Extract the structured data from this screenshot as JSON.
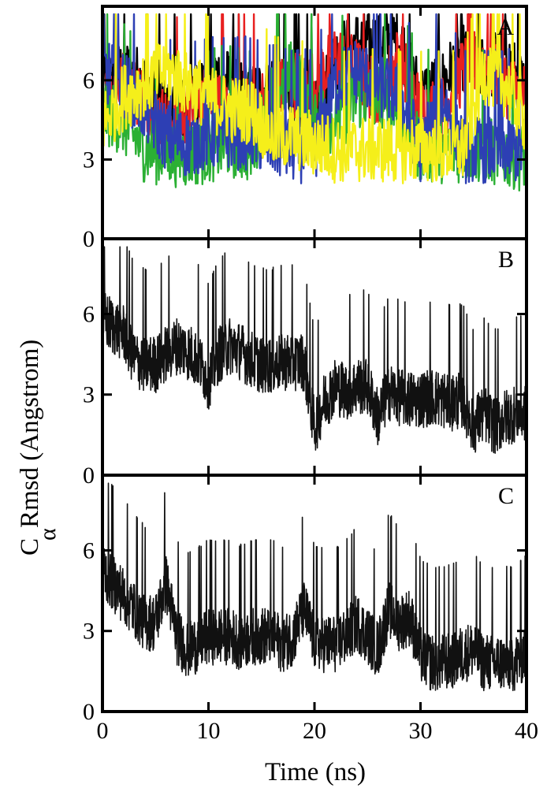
{
  "chart_data": {
    "type": "line",
    "ylabel": "C",
    "ylabel_subscript": "α",
    "ylabel_rest": "Rmsd (Angstrom)",
    "xlabel": "Time (ns)",
    "shared_x": true,
    "xlim": [
      0,
      40
    ],
    "xticks": [
      "0",
      "10",
      "20",
      "30",
      "40"
    ],
    "grid": false,
    "panels": [
      {
        "label": "A",
        "ylim": [
          0,
          8.8
        ],
        "yticks": [
          "0",
          "3",
          "6"
        ],
        "series_colors": [
          "#000000",
          "#e82020",
          "#2bb034",
          "#2d3fb4",
          "#f5ef1a"
        ],
        "series": [
          {
            "color": "#000000",
            "x": [
              0,
              2,
              4,
              6,
              8,
              10,
              12,
              14,
              16,
              18,
              20,
              22,
              24,
              26,
              28,
              30,
              32,
              34,
              36,
              38,
              40
            ],
            "y": [
              5.5,
              6.0,
              5.5,
              4.5,
              4.5,
              6.0,
              5.5,
              5.0,
              5.5,
              5.0,
              4.5,
              6.5,
              7.0,
              7.0,
              7.2,
              5.0,
              5.5,
              6.5,
              6.0,
              6.5,
              5.0
            ]
          },
          {
            "color": "#e82020",
            "x": [
              0,
              2,
              4,
              6,
              8,
              10,
              12,
              14,
              16,
              18,
              20,
              22,
              24,
              26,
              28,
              30,
              32,
              34,
              36,
              38,
              40
            ],
            "y": [
              5.0,
              5.5,
              5.0,
              4.0,
              4.5,
              5.0,
              4.5,
              4.5,
              5.0,
              5.5,
              5.5,
              6.5,
              6.0,
              5.0,
              6.5,
              4.5,
              4.5,
              6.0,
              6.5,
              5.5,
              5.0
            ]
          },
          {
            "color": "#2bb034",
            "x": [
              0,
              2,
              4,
              6,
              8,
              10,
              12,
              14,
              16,
              18,
              20,
              22,
              24,
              26,
              28,
              30,
              32,
              34,
              36,
              38,
              40
            ],
            "y": [
              4.5,
              4.0,
              3.0,
              2.9,
              2.8,
              3.0,
              3.2,
              3.0,
              5.0,
              6.0,
              4.5,
              4.0,
              5.0,
              5.0,
              4.5,
              3.0,
              3.0,
              3.0,
              3.0,
              2.8,
              2.7
            ]
          },
          {
            "color": "#2d3fb4",
            "x": [
              0,
              2,
              4,
              6,
              8,
              10,
              12,
              14,
              16,
              18,
              20,
              22,
              24,
              26,
              28,
              30,
              32,
              34,
              36,
              38,
              40
            ],
            "y": [
              6.0,
              5.5,
              4.5,
              3.5,
              3.2,
              3.5,
              3.5,
              3.5,
              3.2,
              3.0,
              3.0,
              5.5,
              6.0,
              5.5,
              5.0,
              3.0,
              5.0,
              3.0,
              3.0,
              3.0,
              3.0
            ]
          },
          {
            "color": "#f5ef1a",
            "x": [
              0,
              2,
              4,
              6,
              8,
              10,
              12,
              14,
              16,
              18,
              20,
              22,
              24,
              26,
              28,
              30,
              32,
              34,
              36,
              38,
              40
            ],
            "y": [
              4.0,
              5.0,
              5.5,
              6.0,
              5.5,
              5.0,
              4.5,
              4.5,
              3.5,
              3.5,
              3.2,
              3.0,
              3.0,
              3.0,
              3.0,
              3.0,
              3.0,
              3.0,
              6.0,
              5.5,
              4.0
            ]
          }
        ]
      },
      {
        "label": "B",
        "ylim": [
          0,
          8.8
        ],
        "yticks": [
          "0",
          "3",
          "6"
        ],
        "series_colors": [
          "#111111"
        ],
        "series": [
          {
            "color": "#111111",
            "x": [
              0,
              1,
              2,
              3,
              4,
              5,
              6,
              7,
              8,
              9,
              10,
              11,
              12,
              13,
              14,
              15,
              16,
              17,
              18,
              19,
              20,
              21,
              22,
              23,
              24,
              25,
              26,
              27,
              28,
              29,
              30,
              31,
              32,
              33,
              34,
              35,
              36,
              37,
              38,
              39,
              40
            ],
            "y": [
              5.5,
              5.2,
              5.0,
              4.0,
              3.8,
              3.8,
              4.2,
              4.5,
              4.3,
              4.0,
              3.2,
              4.2,
              4.5,
              4.3,
              4.0,
              3.8,
              3.8,
              3.9,
              3.9,
              3.9,
              1.5,
              2.5,
              3.0,
              2.8,
              3.0,
              3.0,
              1.8,
              2.8,
              2.6,
              2.5,
              2.5,
              2.6,
              2.5,
              2.4,
              2.5,
              1.5,
              2.0,
              1.5,
              1.8,
              2.0,
              2.0
            ]
          }
        ]
      },
      {
        "label": "C",
        "ylim": [
          0,
          8.8
        ],
        "yticks": [
          "0",
          "3",
          "6"
        ],
        "series_colors": [
          "#111111"
        ],
        "series": [
          {
            "color": "#111111",
            "x": [
              0,
              1,
              2,
              3,
              4,
              5,
              6,
              7,
              8,
              9,
              10,
              11,
              12,
              13,
              14,
              15,
              16,
              17,
              18,
              19,
              20,
              21,
              22,
              23,
              24,
              25,
              26,
              27,
              28,
              29,
              30,
              31,
              32,
              33,
              34,
              35,
              36,
              37,
              38,
              39,
              40
            ],
            "y": [
              5.0,
              4.5,
              4.0,
              3.5,
              3.0,
              3.0,
              4.5,
              2.5,
              2.0,
              2.2,
              2.5,
              2.5,
              2.5,
              2.3,
              2.5,
              2.5,
              2.5,
              2.2,
              2.5,
              3.5,
              2.3,
              2.2,
              2.2,
              2.5,
              3.0,
              2.5,
              2.0,
              3.5,
              3.0,
              3.2,
              1.8,
              1.5,
              1.5,
              1.6,
              1.8,
              2.0,
              1.5,
              1.5,
              1.5,
              1.5,
              2.0
            ]
          }
        ]
      }
    ]
  }
}
